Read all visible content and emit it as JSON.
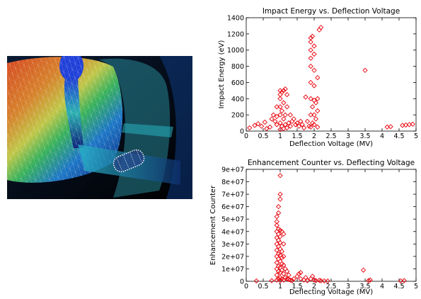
{
  "chart_data": [
    {
      "type": "scatter",
      "title": "Impact Energy vs. Deflection Voltage",
      "xlabel": "Deflection Voltage (MV)",
      "ylabel": "Impact Energy (eV)",
      "xlim": [
        0,
        5
      ],
      "ylim": [
        0,
        1400
      ],
      "xticks": [
        "0",
        "0.5",
        "1",
        "1.5",
        "2",
        "2.5",
        "3",
        "3.5",
        "4",
        "4.5",
        "5"
      ],
      "yticks": [
        "0",
        "200",
        "400",
        "600",
        "800",
        "1000",
        "1200",
        "1400"
      ],
      "grid": false,
      "legend": false,
      "marker": "diamond",
      "marker_color": "#e8000b",
      "points": [
        [
          0.1,
          40
        ],
        [
          0.25,
          70
        ],
        [
          0.35,
          90
        ],
        [
          0.45,
          60
        ],
        [
          0.55,
          110
        ],
        [
          0.6,
          30
        ],
        [
          0.7,
          50
        ],
        [
          0.75,
          150
        ],
        [
          0.8,
          200
        ],
        [
          0.85,
          120
        ],
        [
          0.9,
          300
        ],
        [
          0.9,
          180
        ],
        [
          0.9,
          80
        ],
        [
          1.0,
          20
        ],
        [
          1.0,
          100
        ],
        [
          1.0,
          200
        ],
        [
          1.0,
          300
        ],
        [
          1.0,
          400
        ],
        [
          1.0,
          450
        ],
        [
          1.0,
          500
        ],
        [
          1.05,
          60
        ],
        [
          1.05,
          250
        ],
        [
          1.05,
          480
        ],
        [
          1.1,
          30
        ],
        [
          1.1,
          150
        ],
        [
          1.1,
          350
        ],
        [
          1.1,
          500
        ],
        [
          1.15,
          80
        ],
        [
          1.15,
          200
        ],
        [
          1.15,
          520
        ],
        [
          1.2,
          40
        ],
        [
          1.2,
          300
        ],
        [
          1.2,
          450
        ],
        [
          1.25,
          100
        ],
        [
          1.3,
          60
        ],
        [
          1.3,
          200
        ],
        [
          1.35,
          120
        ],
        [
          1.4,
          150
        ],
        [
          1.45,
          80
        ],
        [
          1.5,
          100
        ],
        [
          1.55,
          60
        ],
        [
          1.6,
          120
        ],
        [
          1.65,
          80
        ],
        [
          1.7,
          40
        ],
        [
          1.75,
          420
        ],
        [
          1.8,
          120
        ],
        [
          1.85,
          60
        ],
        [
          1.9,
          50
        ],
        [
          1.9,
          200
        ],
        [
          1.9,
          400
        ],
        [
          1.9,
          600
        ],
        [
          1.9,
          800
        ],
        [
          1.9,
          900
        ],
        [
          1.9,
          1000
        ],
        [
          1.9,
          1100
        ],
        [
          1.9,
          1150
        ],
        [
          1.95,
          100
        ],
        [
          1.95,
          300
        ],
        [
          1.95,
          1170
        ],
        [
          2.0,
          80
        ],
        [
          2.0,
          200
        ],
        [
          2.0,
          380
        ],
        [
          2.0,
          560
        ],
        [
          2.0,
          750
        ],
        [
          2.0,
          950
        ],
        [
          2.0,
          1050
        ],
        [
          2.05,
          150
        ],
        [
          2.05,
          350
        ],
        [
          2.1,
          50
        ],
        [
          2.1,
          250
        ],
        [
          2.1,
          400
        ],
        [
          2.1,
          660
        ],
        [
          2.15,
          1250
        ],
        [
          2.2,
          1280
        ],
        [
          3.5,
          750
        ],
        [
          4.15,
          50
        ],
        [
          4.25,
          55
        ],
        [
          4.6,
          70
        ],
        [
          4.7,
          75
        ],
        [
          4.8,
          80
        ],
        [
          4.9,
          85
        ]
      ]
    },
    {
      "type": "scatter",
      "title": "Enhancement Counter vs. Deflecting Voltage",
      "xlabel": "Deflecting Voltage (MV)",
      "ylabel": "Enhancement Counter",
      "xlim": [
        0,
        5
      ],
      "ylim": [
        0,
        90000000
      ],
      "xticks": [
        "0",
        "0.5",
        "1",
        "1.5",
        "2",
        "2.5",
        "3",
        "3.5",
        "4",
        "4.5",
        "5"
      ],
      "yticks": [
        "0",
        "1e+07",
        "2e+07",
        "3e+07",
        "4e+07",
        "5e+07",
        "6e+07",
        "7e+07",
        "8e+07",
        "9e+07"
      ],
      "grid": false,
      "legend": false,
      "marker": "diamond",
      "marker_color": "#e8000b",
      "points": [
        [
          0.3,
          300000
        ],
        [
          0.75,
          500000
        ],
        [
          0.9,
          1000000
        ],
        [
          0.9,
          5000000
        ],
        [
          0.9,
          10000000
        ],
        [
          0.9,
          15000000
        ],
        [
          0.9,
          20000000
        ],
        [
          0.9,
          25000000
        ],
        [
          0.9,
          30000000
        ],
        [
          0.9,
          35000000
        ],
        [
          0.9,
          40000000
        ],
        [
          0.9,
          45000000
        ],
        [
          0.9,
          48000000
        ],
        [
          0.9,
          52000000
        ],
        [
          0.95,
          2000000
        ],
        [
          0.95,
          8000000
        ],
        [
          0.95,
          12000000
        ],
        [
          0.95,
          18000000
        ],
        [
          0.95,
          22000000
        ],
        [
          0.95,
          28000000
        ],
        [
          0.95,
          33000000
        ],
        [
          0.95,
          38000000
        ],
        [
          0.95,
          42000000
        ],
        [
          0.95,
          55000000
        ],
        [
          0.95,
          60000000
        ],
        [
          1.0,
          500000
        ],
        [
          1.0,
          3000000
        ],
        [
          1.0,
          7000000
        ],
        [
          1.0,
          11000000
        ],
        [
          1.0,
          16000000
        ],
        [
          1.0,
          21000000
        ],
        [
          1.0,
          26000000
        ],
        [
          1.0,
          31000000
        ],
        [
          1.0,
          36000000
        ],
        [
          1.0,
          41000000
        ],
        [
          1.0,
          66000000
        ],
        [
          1.0,
          70000000
        ],
        [
          1.0,
          85000000
        ],
        [
          1.05,
          2000000
        ],
        [
          1.05,
          9000000
        ],
        [
          1.05,
          14000000
        ],
        [
          1.05,
          19000000
        ],
        [
          1.05,
          24000000
        ],
        [
          1.05,
          40000000
        ],
        [
          1.1,
          1000000
        ],
        [
          1.1,
          6000000
        ],
        [
          1.1,
          13000000
        ],
        [
          1.1,
          20000000
        ],
        [
          1.1,
          30000000
        ],
        [
          1.1,
          38000000
        ],
        [
          1.15,
          3000000
        ],
        [
          1.15,
          10000000
        ],
        [
          1.2,
          2000000
        ],
        [
          1.2,
          8000000
        ],
        [
          1.25,
          1500000
        ],
        [
          1.25,
          5000000
        ],
        [
          1.3,
          1000000
        ],
        [
          1.35,
          500000
        ],
        [
          1.4,
          2000000
        ],
        [
          1.5,
          4000000
        ],
        [
          1.55,
          6000000
        ],
        [
          1.6,
          2000000
        ],
        [
          1.6,
          7000000
        ],
        [
          1.7,
          1000000
        ],
        [
          1.75,
          3000000
        ],
        [
          1.8,
          500000
        ],
        [
          1.9,
          2000000
        ],
        [
          1.95,
          4000000
        ],
        [
          2.0,
          1000000
        ],
        [
          2.05,
          500000
        ],
        [
          2.15,
          800000
        ],
        [
          2.2,
          400000
        ],
        [
          2.3,
          300000
        ],
        [
          2.4,
          200000
        ],
        [
          3.45,
          9000000
        ],
        [
          3.6,
          500000
        ],
        [
          3.65,
          1000000
        ],
        [
          4.55,
          300000
        ],
        [
          4.65,
          500000
        ]
      ]
    }
  ]
}
